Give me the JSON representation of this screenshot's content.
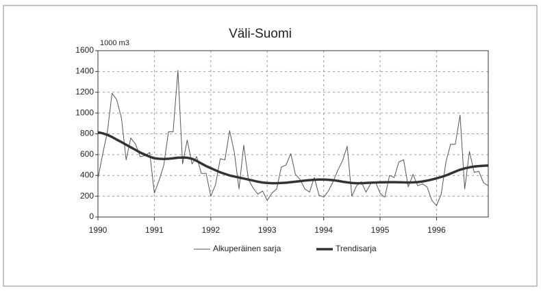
{
  "chart_data": {
    "type": "line",
    "title": "Väli-Suomi",
    "y_label": "1000 m3",
    "x": [
      1990,
      1990.083,
      1990.167,
      1990.25,
      1990.333,
      1990.417,
      1990.5,
      1990.583,
      1990.667,
      1990.75,
      1990.833,
      1990.917,
      1991,
      1991.083,
      1991.167,
      1991.25,
      1991.333,
      1991.417,
      1991.5,
      1991.583,
      1991.667,
      1991.75,
      1991.833,
      1991.917,
      1992,
      1992.083,
      1992.167,
      1992.25,
      1992.333,
      1992.417,
      1992.5,
      1992.583,
      1992.667,
      1992.75,
      1992.833,
      1992.917,
      1993,
      1993.083,
      1993.167,
      1993.25,
      1993.333,
      1993.417,
      1993.5,
      1993.583,
      1993.667,
      1993.75,
      1993.833,
      1993.917,
      1994,
      1994.083,
      1994.167,
      1994.25,
      1994.333,
      1994.417,
      1994.5,
      1994.583,
      1994.667,
      1994.75,
      1994.833,
      1994.917,
      1995,
      1995.083,
      1995.167,
      1995.25,
      1995.333,
      1995.417,
      1995.5,
      1995.583,
      1995.667,
      1995.75,
      1995.833,
      1995.917,
      1996,
      1996.083,
      1996.167,
      1996.25,
      1996.333,
      1996.417,
      1996.5,
      1996.583,
      1996.667,
      1996.75,
      1996.833,
      1996.917
    ],
    "series": [
      {
        "name": "Alkuperäinen sarja",
        "color": "#555555",
        "width": 1,
        "values": [
          370,
          600,
          820,
          1190,
          1130,
          950,
          550,
          760,
          700,
          580,
          590,
          620,
          230,
          350,
          500,
          820,
          820,
          1410,
          510,
          740,
          510,
          580,
          420,
          420,
          200,
          310,
          560,
          550,
          830,
          620,
          270,
          690,
          360,
          280,
          220,
          250,
          160,
          230,
          270,
          480,
          500,
          610,
          410,
          360,
          270,
          240,
          380,
          210,
          190,
          250,
          340,
          450,
          540,
          680,
          200,
          300,
          340,
          240,
          320,
          340,
          230,
          190,
          400,
          380,
          530,
          550,
          290,
          410,
          300,
          320,
          290,
          160,
          110,
          220,
          530,
          700,
          700,
          980,
          270,
          630,
          430,
          440,
          330,
          300
        ]
      },
      {
        "name": "Trendisarja",
        "color": "#333333",
        "width": 3.5,
        "values": [
          815,
          805,
          790,
          770,
          745,
          720,
          695,
          670,
          645,
          620,
          600,
          580,
          565,
          560,
          558,
          560,
          565,
          570,
          572,
          570,
          560,
          540,
          515,
          490,
          470,
          450,
          430,
          415,
          400,
          390,
          380,
          370,
          360,
          350,
          340,
          332,
          328,
          325,
          325,
          327,
          330,
          335,
          340,
          345,
          350,
          355,
          358,
          360,
          360,
          358,
          354,
          348,
          340,
          333,
          328,
          325,
          325,
          328,
          330,
          332,
          333,
          334,
          335,
          335,
          334,
          333,
          332,
          333,
          336,
          342,
          350,
          360,
          372,
          385,
          400,
          418,
          437,
          455,
          468,
          478,
          485,
          490,
          493,
          495
        ]
      }
    ],
    "xlim": [
      1990,
      1996.917
    ],
    "xticks": [
      1990,
      1991,
      1992,
      1993,
      1994,
      1995,
      1996
    ],
    "ylim": [
      0,
      1600
    ],
    "yticks": [
      0,
      200,
      400,
      600,
      800,
      1000,
      1200,
      1400,
      1600
    ],
    "grid": true
  }
}
